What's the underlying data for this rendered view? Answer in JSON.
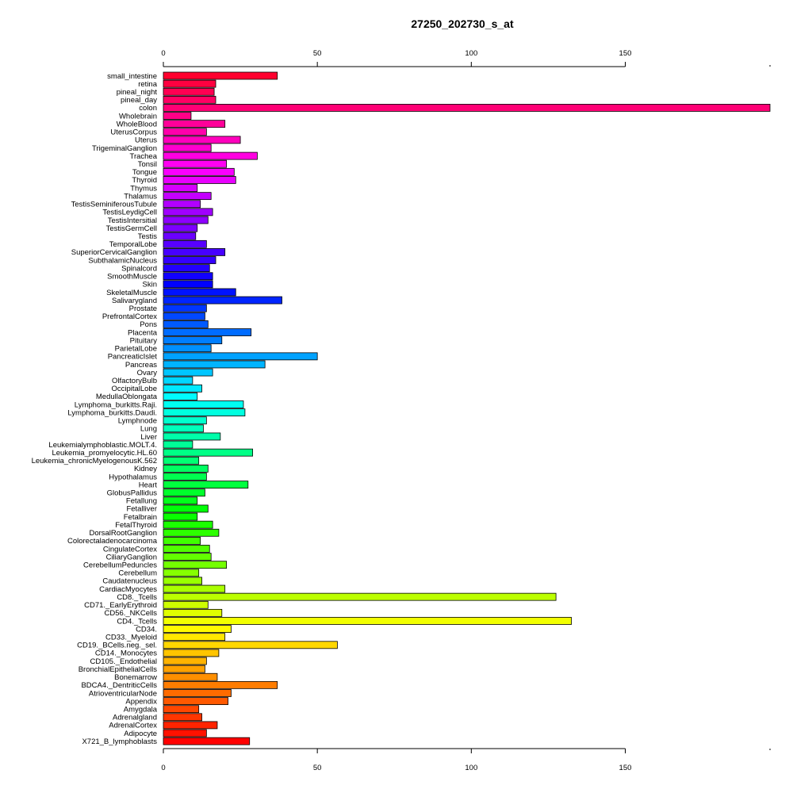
{
  "chart_data": {
    "type": "bar",
    "orientation": "horizontal",
    "title": "27250_202730_s_at",
    "xlabel": "",
    "ylabel": "",
    "xlim": [
      0,
      197
    ],
    "xticks": [
      0,
      50,
      100,
      150
    ],
    "xtick_labels": [
      "0",
      "50",
      "100",
      "150"
    ],
    "axes": "top and bottom",
    "grid": false,
    "legend": "none",
    "categories": [
      "small_intestine",
      "retina",
      "pineal_night",
      "pineal_day",
      "colon",
      "Wholebrain",
      "WholeBlood",
      "UterusCorpus",
      "Uterus",
      "TrigeminalGanglion",
      "Trachea",
      "Tonsil",
      "Tongue",
      "Thyroid",
      "Thymus",
      "Thalamus",
      "TestisSeminiferousTubule",
      "TestisLeydigCell",
      "TestisIntersitial",
      "TestisGermCell",
      "Testis",
      "TemporalLobe",
      "SuperiorCervicalGanglion",
      "SubthalamicNucleus",
      "Spinalcord",
      "SmoothMuscle",
      "Skin",
      "SkeletalMuscle",
      "Salivarygland",
      "Prostate",
      "PrefrontalCortex",
      "Pons",
      "Placenta",
      "Pituitary",
      "ParietalLobe",
      "PancreaticIslet",
      "Pancreas",
      "Ovary",
      "OlfactoryBulb",
      "OccipitalLobe",
      "MedullaOblongata",
      "Lymphoma_burkitts.Raji.",
      "Lymphoma_burkitts.Daudi.",
      "Lymphnode",
      "Lung",
      "Liver",
      "Leukemialymphoblastic.MOLT.4.",
      "Leukemia_promyelocytic.HL.60",
      "Leukemia_chronicMyelogenousK.562",
      "Kidney",
      "Hypothalamus",
      "Heart",
      "GlobusPallidus",
      "Fetallung",
      "Fetalliver",
      "Fetalbrain",
      "FetalThyroid",
      "DorsalRootGanglion",
      "Colorectaladenocarcinoma",
      "CingulateCortex",
      "CiliaryGanglion",
      "CerebellumPeduncles",
      "Cerebellum",
      "Caudatenucleus",
      "CardiacMyocytes",
      "CD8._Tcells",
      "CD71._EarlyErythroid",
      "CD56._NKCells",
      "CD4._Tcells",
      "CD34.",
      "CD33._Myeloid",
      "CD19._BCells.neg._sel.",
      "CD14._Monocytes",
      "CD105._Endothelial",
      "BronchialEpithelialCells",
      "Bonemarrow",
      "BDCA4._DentriticCells",
      "AtrioventricularNode",
      "Appendix",
      "Amygdala",
      "Adrenalgland",
      "AdrenalCortex",
      "Adipocyte",
      "X721_B_lymphoblasts"
    ],
    "values": [
      37,
      17,
      16.5,
      17,
      197,
      9,
      20,
      14,
      25,
      15.5,
      30.5,
      20.5,
      23,
      23.5,
      11,
      15.5,
      12,
      16,
      14.5,
      11,
      10.5,
      14,
      20,
      17,
      15,
      16,
      16,
      23.5,
      38.5,
      14,
      13.5,
      14.5,
      28.5,
      19,
      15.5,
      50,
      33,
      16,
      9.5,
      12.5,
      11,
      26,
      26.5,
      14,
      13,
      18.5,
      9.5,
      29,
      11.5,
      14.5,
      14,
      27.5,
      13.5,
      11,
      14.5,
      11,
      16,
      18,
      12,
      15,
      15.5,
      20.5,
      11.5,
      12.5,
      20,
      127.5,
      14.5,
      19,
      132.5,
      22,
      20,
      56.5,
      18,
      14,
      13.5,
      17.5,
      37,
      22,
      21,
      11.5,
      12.5,
      17.5,
      14,
      28
    ]
  }
}
